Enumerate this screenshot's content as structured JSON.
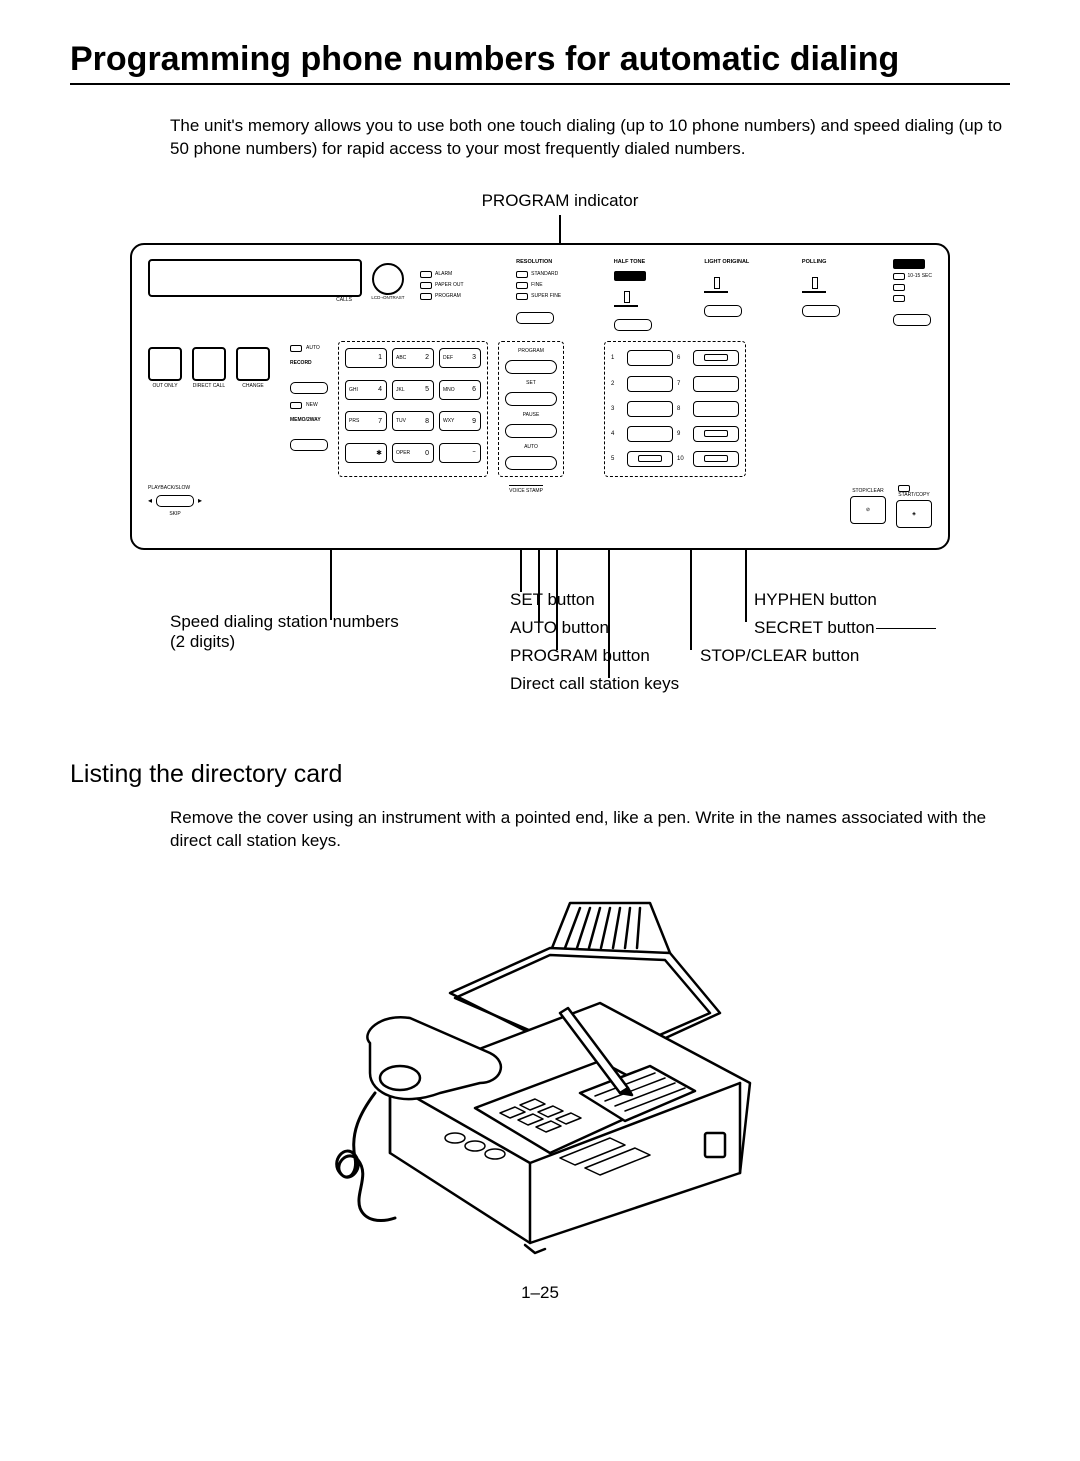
{
  "title": "Programming phone numbers for automatic dialing",
  "intro": "The unit's memory allows you to use both one touch dialing (up to 10 phone numbers) and speed dialing (up to 50 phone numbers) for rapid access to your most frequently dialed numbers.",
  "diagram": {
    "top_label": "PROGRAM indicator",
    "indicator_headers": [
      "RESOLUTION",
      "HALF TONE",
      "LIGHT ORIGINAL",
      "POLLING",
      ""
    ],
    "indicator_rows_col1": [
      "ALARM",
      "PAPER OUT",
      "PROGRAM"
    ],
    "indicator_rows_col2": [
      "STANDARD",
      "FINE",
      "SUPER FINE"
    ],
    "indicator_rows_col5": [
      "10-15 SEC",
      "",
      ""
    ],
    "keypad": [
      {
        "sub": "",
        "n": "1"
      },
      {
        "sub": "ABC",
        "n": "2"
      },
      {
        "sub": "DEF",
        "n": "3"
      },
      {
        "sub": "GHI",
        "n": "4"
      },
      {
        "sub": "JKL",
        "n": "5"
      },
      {
        "sub": "MNO",
        "n": "6"
      },
      {
        "sub": "PRS",
        "n": "7"
      },
      {
        "sub": "TUV",
        "n": "8"
      },
      {
        "sub": "WXY",
        "n": "9"
      },
      {
        "sub": "",
        "n": "✱"
      },
      {
        "sub": "OPER",
        "n": "0"
      },
      {
        "sub": "",
        "n": "⁼"
      }
    ],
    "func_labels": [
      "PROGRAM",
      "SET",
      "PAUSE",
      "AUTO"
    ],
    "direct_numbers": [
      "1",
      "6",
      "2",
      "7",
      "3",
      "8",
      "4",
      "9",
      "5",
      "10"
    ],
    "left_sq_labels": [
      "OUT ONLY",
      "DIRECT CALL",
      "CHANGE"
    ],
    "mid_labels_a": [
      "AUTO",
      "RECORD",
      ""
    ],
    "mid_labels_b": [
      "NEW",
      "MEMO/2WAY"
    ],
    "bottom_left": [
      "PLAYBACK/SLOW",
      "SKIP"
    ],
    "stop_label": "STOP/CLEAR",
    "start_label": "START/COPY",
    "callouts": {
      "set": "SET button",
      "auto": "AUTO button",
      "program": "PROGRAM button",
      "direct": "Direct call station keys",
      "speed_l1": "Speed dialing station numbers",
      "speed_l2": "(2 digits)",
      "hyphen": "HYPHEN button",
      "secret": "SECRET button",
      "stopclear": "STOP/CLEAR button"
    }
  },
  "section2_title": "Listing the directory card",
  "section2_body": "Remove the cover using an instrument with a pointed end, like a pen. Write in the names associated with the direct call station keys.",
  "page_number": "1–25",
  "colors": {
    "fg": "#000000",
    "bg": "#ffffff"
  }
}
